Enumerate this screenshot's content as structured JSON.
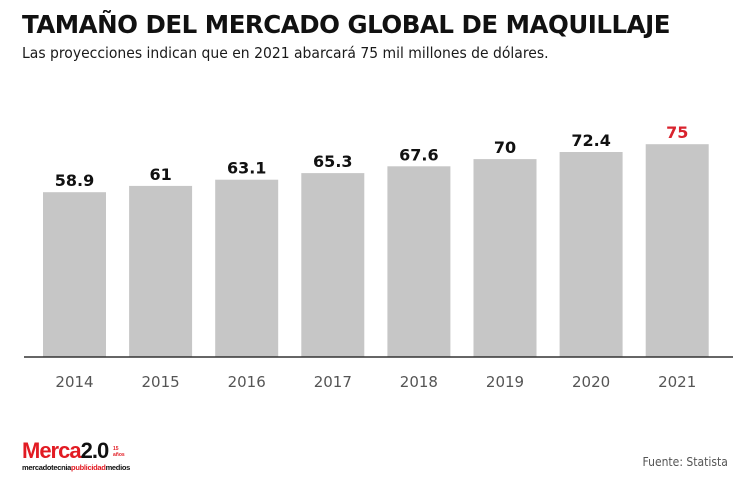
{
  "header": {
    "title": "TAMAÑO DEL MERCADO GLOBAL DE MAQUILLAJE",
    "subtitle": "Las proyecciones indican que en 2021 abarcará 75 mil millones de dólares."
  },
  "footer": {
    "source": "Fuente: Statista",
    "logo": {
      "brand_red": "Merca",
      "brand_black": "2.0",
      "badge": "15 años",
      "tagline_a": "mercadotecnia",
      "tagline_b": "publicidad",
      "tagline_c": "medios"
    }
  },
  "colors": {
    "bar": "#c6c6c6",
    "label": "#111111",
    "highlight_label": "#d9232e",
    "axis": "#333333",
    "tick_label": "#555555",
    "brand_red": "#e21b23"
  },
  "chart_data": {
    "type": "bar",
    "title": "TAMAÑO DEL MERCADO GLOBAL DE MAQUILLAJE",
    "subtitle": "Las proyecciones indican que en 2021 abarcará 75 mil millones de dólares.",
    "xlabel": "",
    "ylabel": "",
    "categories": [
      "2014",
      "2015",
      "2016",
      "2017",
      "2018",
      "2019",
      "2020",
      "2021"
    ],
    "values": [
      58.9,
      61,
      63.1,
      65.3,
      67.6,
      70,
      72.4,
      75
    ],
    "data_labels": [
      "58.9",
      "61",
      "63.1",
      "65.3",
      "67.6",
      "70",
      "72.4",
      "75"
    ],
    "highlight_index": 7,
    "ylim": [
      3.6,
      80
    ],
    "grid": false,
    "legend": "none",
    "source": "Fuente: Statista"
  }
}
